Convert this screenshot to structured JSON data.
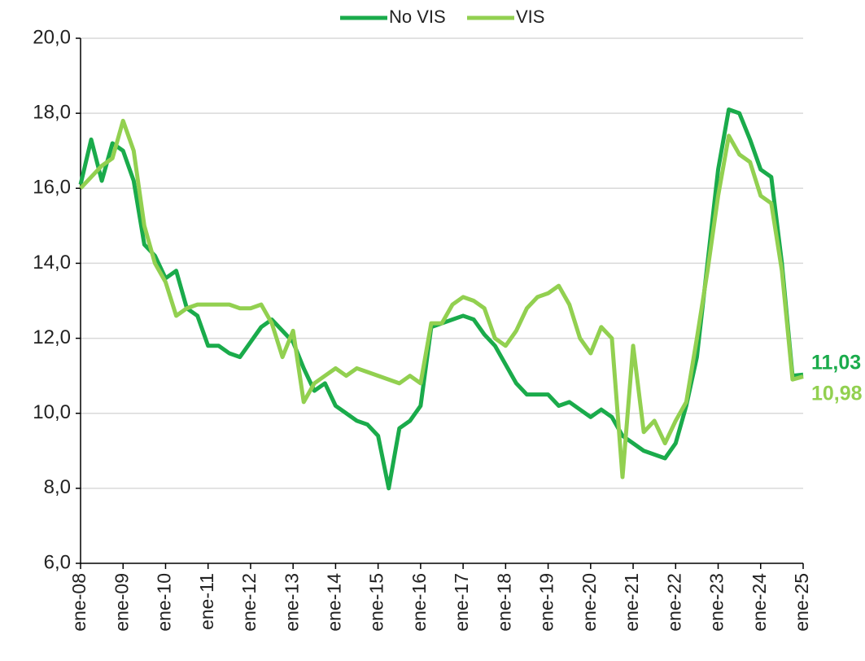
{
  "chart_data": {
    "type": "line",
    "categories": [
      "ene-08",
      null,
      null,
      null,
      "ene-09",
      null,
      null,
      null,
      "ene-10",
      null,
      null,
      null,
      "ene-11",
      null,
      null,
      null,
      "ene-12",
      null,
      null,
      null,
      "ene-13",
      null,
      null,
      null,
      "ene-14",
      null,
      null,
      null,
      "ene-15",
      null,
      null,
      null,
      "ene-16",
      null,
      null,
      null,
      "ene-17",
      null,
      null,
      null,
      "ene-18",
      null,
      null,
      null,
      "ene-19",
      null,
      null,
      null,
      "ene-20",
      null,
      null,
      null,
      "ene-21",
      null,
      null,
      null,
      "ene-22",
      null,
      null,
      null,
      "ene-23",
      null,
      null,
      null,
      "ene-24",
      null,
      null,
      null,
      "ene-25"
    ],
    "series": [
      {
        "name": "No VIS",
        "color": "#1aab4b",
        "values": [
          16.1,
          17.3,
          16.2,
          17.2,
          17.0,
          16.2,
          14.5,
          14.2,
          13.6,
          13.8,
          12.8,
          12.6,
          11.8,
          11.8,
          11.6,
          11.5,
          11.9,
          12.3,
          12.5,
          12.2,
          11.9,
          11.2,
          10.6,
          10.8,
          10.2,
          10.0,
          9.8,
          9.7,
          9.4,
          8.0,
          9.6,
          9.8,
          10.2,
          12.3,
          12.4,
          12.5,
          12.6,
          12.5,
          12.1,
          11.8,
          11.3,
          10.8,
          10.5,
          10.5,
          10.5,
          10.2,
          10.3,
          10.1,
          9.9,
          10.1,
          9.9,
          9.4,
          9.2,
          9.0,
          8.9,
          8.8,
          9.2,
          10.2,
          11.5,
          14.0,
          16.5,
          18.1,
          18.0,
          17.3,
          16.5,
          16.3,
          14.0,
          11.0,
          11.03
        ],
        "value_labels": [
          null,
          null,
          null,
          null,
          null,
          null,
          null,
          null,
          null,
          null,
          null,
          null,
          null,
          null,
          null,
          null,
          null,
          null,
          null,
          null,
          null,
          null,
          null,
          null,
          null,
          null,
          null,
          null,
          null,
          null,
          null,
          null,
          null,
          null,
          null,
          null,
          null,
          null,
          null,
          null,
          null,
          null,
          null,
          null,
          null,
          null,
          null,
          null,
          null,
          null,
          null,
          null,
          null,
          null,
          null,
          null,
          null,
          null,
          null,
          null,
          null,
          null,
          null,
          null,
          null,
          null,
          null,
          null,
          "11,03"
        ]
      },
      {
        "name": "VIS",
        "color": "#92d050",
        "values": [
          16.0,
          16.3,
          16.6,
          16.8,
          17.8,
          17.0,
          15.0,
          14.0,
          13.5,
          12.6,
          12.8,
          12.9,
          12.9,
          12.9,
          12.9,
          12.8,
          12.8,
          12.9,
          12.4,
          11.5,
          12.2,
          10.3,
          10.8,
          11.0,
          11.2,
          11.0,
          11.2,
          11.1,
          11.0,
          10.9,
          10.8,
          11.0,
          10.8,
          12.4,
          12.4,
          12.9,
          13.1,
          13.0,
          12.8,
          12.0,
          11.8,
          12.2,
          12.8,
          13.1,
          13.2,
          13.4,
          12.9,
          12.0,
          11.6,
          12.3,
          12.0,
          8.3,
          11.8,
          9.5,
          9.8,
          9.2,
          9.8,
          10.3,
          12.0,
          13.8,
          15.8,
          17.4,
          16.9,
          16.7,
          15.8,
          15.6,
          13.8,
          10.9,
          10.98
        ],
        "value_labels": [
          null,
          null,
          null,
          null,
          null,
          null,
          null,
          null,
          null,
          null,
          null,
          null,
          null,
          null,
          null,
          null,
          null,
          null,
          null,
          null,
          null,
          null,
          null,
          null,
          null,
          null,
          null,
          null,
          null,
          null,
          null,
          null,
          null,
          null,
          null,
          null,
          null,
          null,
          null,
          null,
          null,
          null,
          null,
          null,
          null,
          null,
          null,
          null,
          null,
          null,
          null,
          null,
          null,
          null,
          null,
          null,
          null,
          null,
          null,
          null,
          null,
          null,
          null,
          null,
          null,
          null,
          null,
          null,
          "10,98"
        ]
      }
    ],
    "ylim": [
      6,
      20
    ],
    "yticks": [
      {
        "value": 6,
        "label": "6,0"
      },
      {
        "value": 8,
        "label": "8,0"
      },
      {
        "value": 10,
        "label": "10,0"
      },
      {
        "value": 12,
        "label": "12,0"
      },
      {
        "value": 14,
        "label": "14,0"
      },
      {
        "value": 16,
        "label": "16,0"
      },
      {
        "value": 18,
        "label": "18,0"
      },
      {
        "value": 20,
        "label": "20,0"
      }
    ],
    "grid": true,
    "legend": "top"
  }
}
